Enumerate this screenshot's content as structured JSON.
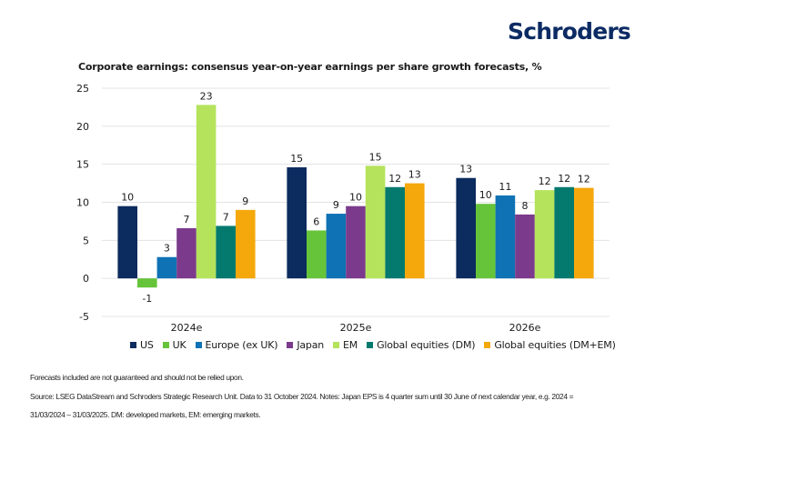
{
  "brand": {
    "logo_text": "Schroders",
    "logo_color": "#0c2b64"
  },
  "chart_data": {
    "type": "bar",
    "title": "Corporate earnings: consensus year-on-year earnings per share growth forecasts, %",
    "xlabel": "",
    "ylabel": "",
    "categories": [
      "2024e",
      "2025e",
      "2026e"
    ],
    "ylim": [
      -5,
      25
    ],
    "yticks": [
      25,
      20,
      15,
      10,
      5,
      0,
      -5
    ],
    "grid": true,
    "legend_position": "bottom",
    "series": [
      {
        "name": "US",
        "color": "#0c2b5e",
        "values": [
          9.5,
          14.6,
          13.2
        ],
        "labels": [
          "10",
          "15",
          "13"
        ]
      },
      {
        "name": "UK",
        "color": "#66c43a",
        "values": [
          -1.2,
          6.3,
          9.8
        ],
        "labels": [
          "-1",
          "6",
          "10"
        ]
      },
      {
        "name": "Europe (ex UK)",
        "color": "#0f72b4",
        "values": [
          2.8,
          8.5,
          10.9
        ],
        "labels": [
          "3",
          "9",
          "11"
        ]
      },
      {
        "name": "Japan",
        "color": "#7b3a8c",
        "values": [
          6.6,
          9.5,
          8.4
        ],
        "labels": [
          "7",
          "10",
          "8"
        ]
      },
      {
        "name": "EM",
        "color": "#b5e35c",
        "values": [
          22.8,
          14.8,
          11.6
        ],
        "labels": [
          "23",
          "15",
          "12"
        ]
      },
      {
        "name": "Global equities (DM)",
        "color": "#047a6e",
        "values": [
          6.9,
          12.0,
          12.0
        ],
        "labels": [
          "7",
          "12",
          "12"
        ]
      },
      {
        "name": "Global equities (DM+EM)",
        "color": "#f5a80c",
        "values": [
          9.0,
          12.5,
          11.9
        ],
        "labels": [
          "9",
          "13",
          "12"
        ]
      }
    ]
  },
  "notes": {
    "disclaimer": "Forecasts included are not guaranteed and should not be relied upon.",
    "source_line1": "Source: LSEG DataStream and Schroders Strategic Research Unit. Data to 31 October 2024. Notes: Japan EPS is 4 quarter sum until 30 June of next calendar year, e.g. 2024 =",
    "source_line2": "31/03/2024 – 31/03/2025. DM: developed markets, EM: emerging markets."
  }
}
